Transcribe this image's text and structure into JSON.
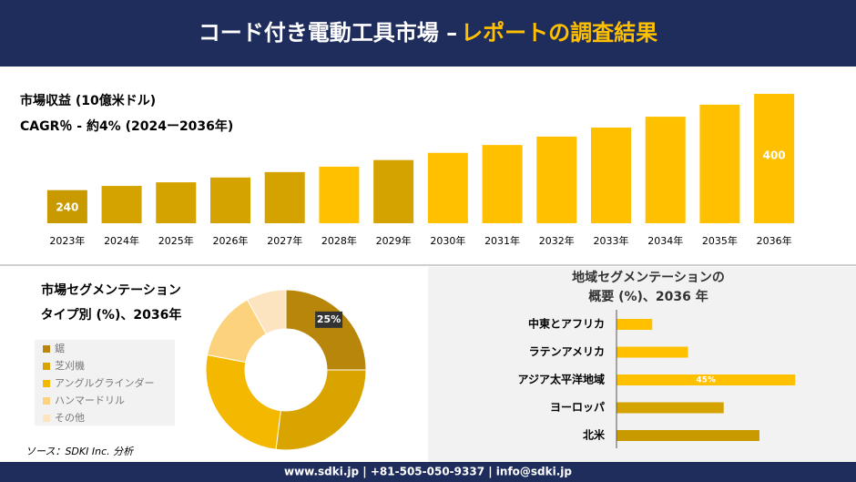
{
  "header": {
    "title": "コード付き電動工具市場 –",
    "title_highlight": "レポートの調査結果"
  },
  "chart_data": [
    {
      "type": "bar",
      "title": "市場収益 (10億米ドル)",
      "subtitle": "CAGR％ - 約4% (2024ー2036年)",
      "categories": [
        "2023年",
        "2024年",
        "2025年",
        "2026年",
        "2027年",
        "2028年",
        "2029年",
        "2030年",
        "2031年",
        "2032年",
        "2033年",
        "2034年",
        "2035年",
        "2036年"
      ],
      "values": [
        240,
        247,
        253,
        261,
        270,
        279,
        290,
        302,
        315,
        329,
        344,
        362,
        382,
        400
      ],
      "value_labels": [
        "240",
        null,
        null,
        null,
        null,
        null,
        null,
        null,
        null,
        null,
        null,
        null,
        null,
        "400"
      ],
      "colors": [
        "#c99a00",
        "#d4a300",
        "#d4a300",
        "#d4a300",
        "#d4a300",
        "#ffc000",
        "#d4a300",
        "#ffc000",
        "#ffc000",
        "#ffc000",
        "#ffc000",
        "#ffc000",
        "#ffc000",
        "#ffc000"
      ],
      "ylim": [
        185,
        400
      ]
    },
    {
      "type": "donut",
      "title": [
        "市場セグメンテーション",
        "タイプ別 (%)、2036年"
      ],
      "categories": [
        "鋸",
        "芝刈機",
        "アングルグラインダー",
        "ハンマードリル",
        "その他"
      ],
      "values": [
        25,
        27,
        26,
        14,
        8
      ],
      "value_labels": [
        "25%",
        null,
        null,
        null,
        null
      ],
      "colors": [
        "#b8860b",
        "#d9a400",
        "#f5b800",
        "#fcd27c",
        "#fde4c0"
      ]
    },
    {
      "type": "barh",
      "title": [
        "地域セグメンテーションの",
        "概要 (%)、2036 年"
      ],
      "categories": [
        "中東とアフリカ",
        "ラテンアメリカ",
        "アジア太平洋地域",
        "ヨーロッパ",
        "北米"
      ],
      "values": [
        9,
        18,
        45,
        27,
        36
      ],
      "value_labels": [
        null,
        null,
        "45%",
        null,
        null
      ],
      "colors": [
        "#ffc000",
        "#ffc000",
        "#ffc000",
        "#d4a300",
        "#c99a00"
      ],
      "xlim": [
        0,
        50
      ]
    }
  ],
  "source": "ソース：SDKI Inc. 分析",
  "footer": "www.sdki.jp | +81-505-050-9337 | info@sdki.jp"
}
